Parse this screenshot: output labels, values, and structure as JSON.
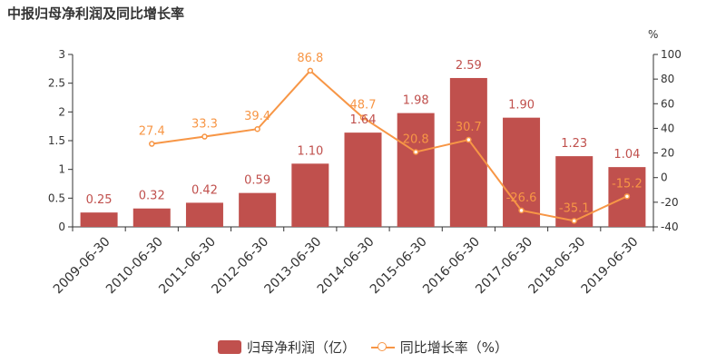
{
  "title": "中报归母净利润及同比增长率",
  "colors": {
    "bar": "#c0504d",
    "line": "#f79646",
    "axis": "#333333"
  },
  "chart_data": {
    "type": "bar",
    "title": "中报归母净利润及同比增长率",
    "categories": [
      "2009-06-30",
      "2010-06-30",
      "2011-06-30",
      "2012-06-30",
      "2013-06-30",
      "2014-06-30",
      "2015-06-30",
      "2016-06-30",
      "2017-06-30",
      "2018-06-30",
      "2019-06-30"
    ],
    "series": [
      {
        "name": "归母净利润（亿）",
        "type": "bar",
        "axis": "left",
        "values": [
          0.25,
          0.32,
          0.42,
          0.59,
          1.1,
          1.64,
          1.98,
          2.59,
          1.9,
          1.23,
          1.04
        ],
        "labels": [
          "0.25",
          "0.32",
          "0.42",
          "0.59",
          "1.10",
          "1.64",
          "1.98",
          "2.59",
          "1.90",
          "1.23",
          "1.04"
        ]
      },
      {
        "name": "同比增长率（%）",
        "type": "line",
        "axis": "right",
        "values": [
          null,
          27.4,
          33.3,
          39.4,
          86.8,
          48.7,
          20.8,
          30.7,
          -26.6,
          -35.1,
          -15.2
        ],
        "labels": [
          "",
          "27.4",
          "33.3",
          "39.4",
          "86.8",
          "48.7",
          "20.8",
          "30.7",
          "-26.6",
          "-35.1",
          "-15.2"
        ]
      }
    ],
    "y_left": {
      "ylim": [
        0,
        3
      ],
      "ticks": [
        "0",
        "0.5",
        "1",
        "1.5",
        "2",
        "2.5",
        "3"
      ]
    },
    "y_right": {
      "ylim": [
        -40,
        100
      ],
      "ticks": [
        "-40",
        "-20",
        "0",
        "20",
        "40",
        "60",
        "80",
        "100"
      ],
      "unit": "%"
    },
    "grid": false,
    "legend_position": "bottom-center"
  },
  "legend": {
    "bar_label": "归母净利润（亿）",
    "line_label": "同比增长率（%）"
  }
}
